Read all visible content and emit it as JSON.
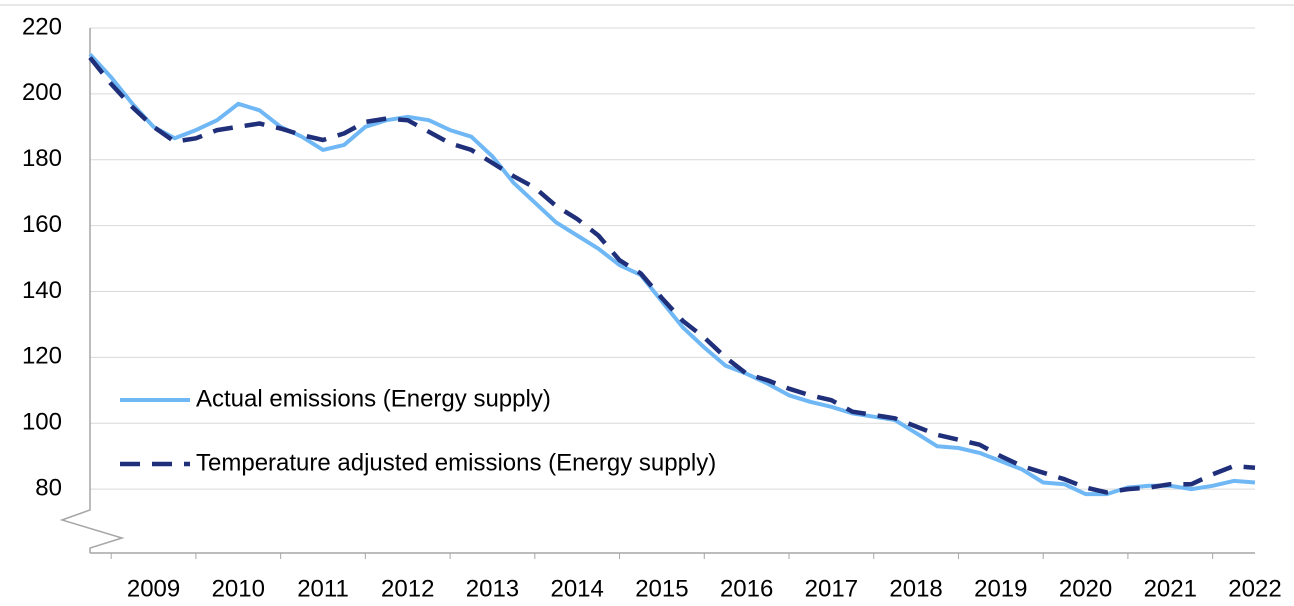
{
  "chart_data": {
    "type": "line",
    "categories": [
      null,
      null,
      null,
      "2009",
      null,
      null,
      null,
      "2010",
      null,
      null,
      null,
      "2011",
      null,
      null,
      null,
      "2012",
      null,
      null,
      null,
      "2013",
      null,
      null,
      null,
      "2014",
      null,
      null,
      null,
      "2015",
      null,
      null,
      null,
      "2016",
      null,
      null,
      null,
      "2017",
      null,
      null,
      null,
      "2018",
      null,
      null,
      null,
      "2019",
      null,
      null,
      null,
      "2020",
      null,
      null,
      null,
      "2021",
      null,
      null,
      null,
      "2022"
    ],
    "series": [
      {
        "name": "Actual emissions (Energy supply)",
        "color": "#6fb8f5",
        "dash": "solid",
        "values": [
          212,
          205,
          197,
          190,
          186.5,
          189,
          192,
          197,
          195,
          190,
          187,
          183,
          184.5,
          190,
          192,
          193,
          192,
          189,
          187,
          181,
          173,
          167,
          161,
          157,
          153,
          148,
          145,
          137,
          129,
          123,
          117.5,
          115,
          112,
          108.5,
          106.5,
          105,
          103,
          102,
          101,
          97,
          93,
          92.5,
          91,
          88.5,
          86,
          82,
          81.5,
          78.5,
          78.5,
          80.5,
          81,
          81,
          80,
          81,
          82.5,
          82
        ]
      },
      {
        "name": "Temperature adjusted emissions (Energy supply)",
        "color": "#1f2f7a",
        "dash": "dashed",
        "values": [
          211,
          203,
          196,
          190,
          185.5,
          186.5,
          189,
          190,
          191,
          189.5,
          187.5,
          186,
          188,
          191.5,
          192.5,
          192,
          188.5,
          185,
          183,
          179,
          175,
          171.5,
          166,
          162,
          157,
          149.5,
          145.5,
          138,
          131,
          126,
          120,
          115,
          113,
          110.5,
          108.5,
          107,
          103.5,
          102.5,
          101.5,
          99,
          96.5,
          95,
          93.5,
          90,
          87,
          85,
          83,
          80.5,
          79,
          80,
          80.5,
          81.5,
          81.5,
          84.5,
          87,
          86.5
        ]
      }
    ],
    "ylim": [
      60,
      220
    ],
    "yticks": [
      80,
      100,
      120,
      140,
      160,
      180,
      200,
      220
    ],
    "grid": true,
    "legend": "center left",
    "axis_break": true
  }
}
